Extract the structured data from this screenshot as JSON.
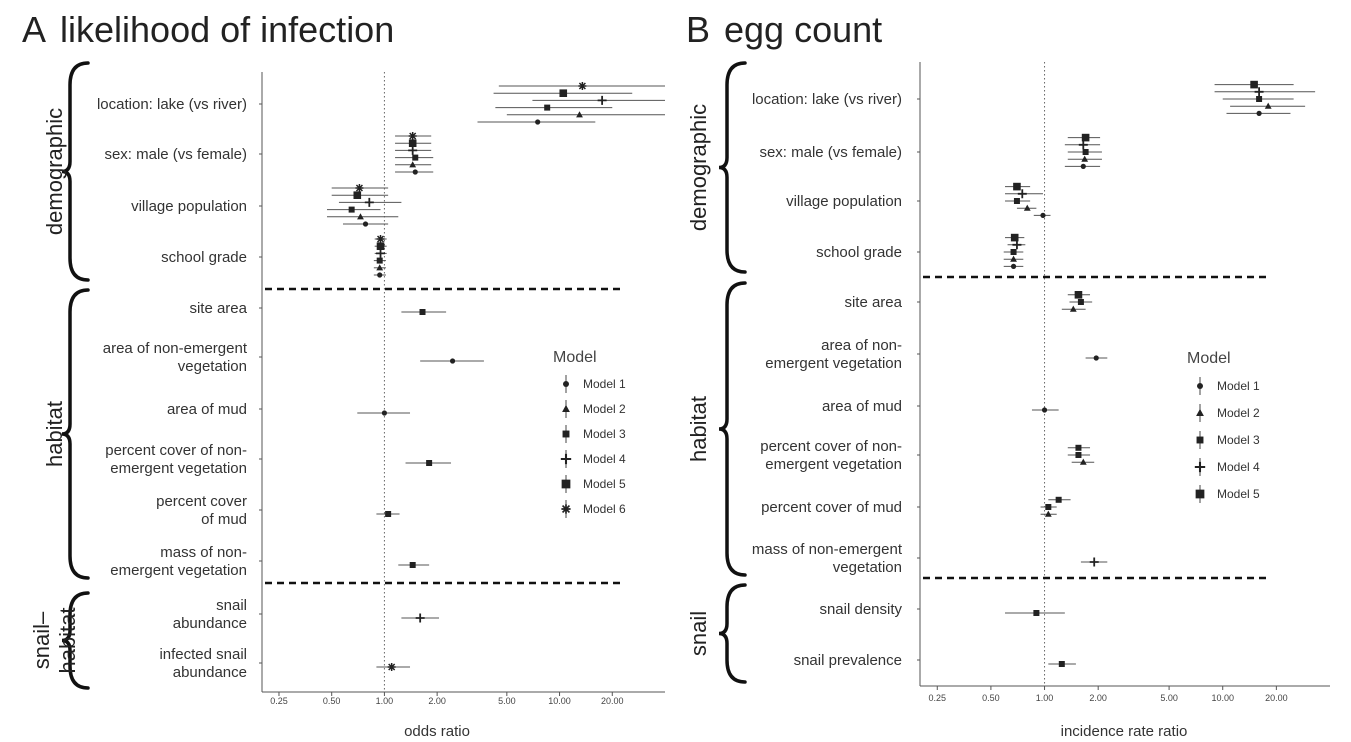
{
  "chart_data": [
    {
      "type": "forest",
      "panel_letter": "A",
      "title": "likelihood of infection",
      "xlabel": "odds ratio",
      "x_scale": "log",
      "xlim": [
        0.2,
        40
      ],
      "x_ticks": [
        0.25,
        0.5,
        1,
        2,
        5,
        10,
        20
      ],
      "x_tick_labels": [
        "0.25",
        "0.50",
        "1.00",
        "2.00",
        "5.00",
        "10.00",
        "20.00"
      ],
      "reference_line": 1,
      "legend": {
        "title": "Model",
        "placement": "right",
        "entries": [
          {
            "label": "Model 1",
            "marker": "circle"
          },
          {
            "label": "Model 2",
            "marker": "triangle"
          },
          {
            "label": "Model 3",
            "marker": "square"
          },
          {
            "label": "Model 4",
            "marker": "plus"
          },
          {
            "label": "Model 5",
            "marker": "bigsquare"
          },
          {
            "label": "Model 6",
            "marker": "star"
          }
        ]
      },
      "groups": [
        {
          "name": "demographic",
          "rows": [
            {
              "label": [
                "location: lake (vs river)"
              ],
              "estimates": [
                {
                  "model": 6,
                  "est": 13.5,
                  "lo": 4.5,
                  "hi": 40
                },
                {
                  "model": 5,
                  "est": 10.5,
                  "lo": 4.2,
                  "hi": 26
                },
                {
                  "model": 4,
                  "est": 17.5,
                  "lo": 7,
                  "hi": 40
                },
                {
                  "model": 3,
                  "est": 8.5,
                  "lo": 4.3,
                  "hi": 20
                },
                {
                  "model": 2,
                  "est": 13,
                  "lo": 5,
                  "hi": 40
                },
                {
                  "model": 1,
                  "est": 7.5,
                  "lo": 3.4,
                  "hi": 16
                }
              ]
            },
            {
              "label": [
                "sex: male (vs female)"
              ],
              "estimates": [
                {
                  "model": 6,
                  "est": 1.45,
                  "lo": 1.15,
                  "hi": 1.85
                },
                {
                  "model": 5,
                  "est": 1.45,
                  "lo": 1.15,
                  "hi": 1.85
                },
                {
                  "model": 4,
                  "est": 1.45,
                  "lo": 1.15,
                  "hi": 1.85
                },
                {
                  "model": 3,
                  "est": 1.5,
                  "lo": 1.15,
                  "hi": 1.9
                },
                {
                  "model": 2,
                  "est": 1.45,
                  "lo": 1.15,
                  "hi": 1.85
                },
                {
                  "model": 1,
                  "est": 1.5,
                  "lo": 1.15,
                  "hi": 1.9
                }
              ]
            },
            {
              "label": [
                "village population"
              ],
              "estimates": [
                {
                  "model": 6,
                  "est": 0.72,
                  "lo": 0.5,
                  "hi": 1.05
                },
                {
                  "model": 5,
                  "est": 0.7,
                  "lo": 0.5,
                  "hi": 1.05
                },
                {
                  "model": 4,
                  "est": 0.82,
                  "lo": 0.55,
                  "hi": 1.25
                },
                {
                  "model": 3,
                  "est": 0.65,
                  "lo": 0.47,
                  "hi": 0.95
                },
                {
                  "model": 2,
                  "est": 0.73,
                  "lo": 0.47,
                  "hi": 1.2
                },
                {
                  "model": 1,
                  "est": 0.78,
                  "lo": 0.58,
                  "hi": 1.05
                }
              ]
            },
            {
              "label": [
                "school grade"
              ],
              "estimates": [
                {
                  "model": 6,
                  "est": 0.95,
                  "lo": 0.88,
                  "hi": 1.03
                },
                {
                  "model": 5,
                  "est": 0.95,
                  "lo": 0.88,
                  "hi": 1.03
                },
                {
                  "model": 4,
                  "est": 0.95,
                  "lo": 0.88,
                  "hi": 1.03
                },
                {
                  "model": 3,
                  "est": 0.94,
                  "lo": 0.87,
                  "hi": 1.02
                },
                {
                  "model": 2,
                  "est": 0.94,
                  "lo": 0.87,
                  "hi": 1.02
                },
                {
                  "model": 1,
                  "est": 0.94,
                  "lo": 0.87,
                  "hi": 1.02
                }
              ]
            }
          ]
        },
        {
          "name": "habitat",
          "rows": [
            {
              "label": [
                "site area"
              ],
              "estimates": [
                {
                  "model": 3,
                  "est": 1.65,
                  "lo": 1.25,
                  "hi": 2.25
                }
              ]
            },
            {
              "label": [
                "area of non-emergent",
                "vegetation"
              ],
              "estimates": [
                {
                  "model": 1,
                  "est": 2.45,
                  "lo": 1.6,
                  "hi": 3.7
                }
              ]
            },
            {
              "label": [
                "area of mud"
              ],
              "estimates": [
                {
                  "model": 1,
                  "est": 1.0,
                  "lo": 0.7,
                  "hi": 1.4
                }
              ]
            },
            {
              "label": [
                "percent cover of non-",
                "emergent vegetation"
              ],
              "estimates": [
                {
                  "model": 3,
                  "est": 1.8,
                  "lo": 1.32,
                  "hi": 2.4
                }
              ]
            },
            {
              "label": [
                "percent cover",
                "of mud"
              ],
              "estimates": [
                {
                  "model": 3,
                  "est": 1.05,
                  "lo": 0.9,
                  "hi": 1.22
                }
              ]
            },
            {
              "label": [
                "mass of non-",
                "emergent vegetation"
              ],
              "estimates": [
                {
                  "model": 3,
                  "est": 1.45,
                  "lo": 1.2,
                  "hi": 1.8
                }
              ]
            }
          ]
        },
        {
          "name": "snail–\nhabitat",
          "rows": [
            {
              "label": [
                "snail",
                "abundance"
              ],
              "estimates": [
                {
                  "model": 4,
                  "est": 1.6,
                  "lo": 1.25,
                  "hi": 2.05
                }
              ]
            },
            {
              "label": [
                "infected snail",
                "abundance"
              ],
              "estimates": [
                {
                  "model": 6,
                  "est": 1.1,
                  "lo": 0.9,
                  "hi": 1.4
                }
              ]
            }
          ]
        }
      ]
    },
    {
      "type": "forest",
      "panel_letter": "B",
      "title": "egg count",
      "xlabel": "incidence rate ratio",
      "x_scale": "log",
      "xlim": [
        0.2,
        40
      ],
      "x_ticks": [
        0.25,
        0.5,
        1,
        2,
        5,
        10,
        20
      ],
      "x_tick_labels": [
        "0.25",
        "0.50",
        "1.00",
        "2.00",
        "5.00",
        "10.00",
        "20.00"
      ],
      "reference_line": 1,
      "legend": {
        "title": "Model",
        "placement": "right",
        "entries": [
          {
            "label": "Model 1",
            "marker": "circle"
          },
          {
            "label": "Model 2",
            "marker": "triangle"
          },
          {
            "label": "Model 3",
            "marker": "square"
          },
          {
            "label": "Model 4",
            "marker": "plus"
          },
          {
            "label": "Model 5",
            "marker": "bigsquare"
          }
        ]
      },
      "groups": [
        {
          "name": "demographic",
          "rows": [
            {
              "label": [
                "location: lake (vs river)"
              ],
              "estimates": [
                {
                  "model": 5,
                  "est": 15,
                  "lo": 9,
                  "hi": 25
                },
                {
                  "model": 4,
                  "est": 16,
                  "lo": 9,
                  "hi": 33
                },
                {
                  "model": 3,
                  "est": 16,
                  "lo": 10,
                  "hi": 25
                },
                {
                  "model": 2,
                  "est": 18,
                  "lo": 11,
                  "hi": 29
                },
                {
                  "model": 1,
                  "est": 16,
                  "lo": 10.5,
                  "hi": 24
                }
              ]
            },
            {
              "label": [
                "sex: male  (vs female)"
              ],
              "estimates": [
                {
                  "model": 5,
                  "est": 1.7,
                  "lo": 1.35,
                  "hi": 2.05
                },
                {
                  "model": 4,
                  "est": 1.65,
                  "lo": 1.3,
                  "hi": 2.05
                },
                {
                  "model": 3,
                  "est": 1.7,
                  "lo": 1.35,
                  "hi": 2.1
                },
                {
                  "model": 2,
                  "est": 1.68,
                  "lo": 1.35,
                  "hi": 2.1
                },
                {
                  "model": 1,
                  "est": 1.65,
                  "lo": 1.3,
                  "hi": 2.05
                }
              ]
            },
            {
              "label": [
                "village population"
              ],
              "estimates": [
                {
                  "model": 5,
                  "est": 0.7,
                  "lo": 0.6,
                  "hi": 0.83
                },
                {
                  "model": 4,
                  "est": 0.75,
                  "lo": 0.6,
                  "hi": 0.98
                },
                {
                  "model": 3,
                  "est": 0.7,
                  "lo": 0.6,
                  "hi": 0.83
                },
                {
                  "model": 2,
                  "est": 0.8,
                  "lo": 0.7,
                  "hi": 0.9
                },
                {
                  "model": 1,
                  "est": 0.98,
                  "lo": 0.87,
                  "hi": 1.08
                }
              ]
            },
            {
              "label": [
                "school grade"
              ],
              "estimates": [
                {
                  "model": 5,
                  "est": 0.68,
                  "lo": 0.6,
                  "hi": 0.77
                },
                {
                  "model": 4,
                  "est": 0.7,
                  "lo": 0.62,
                  "hi": 0.78
                },
                {
                  "model": 3,
                  "est": 0.67,
                  "lo": 0.59,
                  "hi": 0.76
                },
                {
                  "model": 2,
                  "est": 0.67,
                  "lo": 0.59,
                  "hi": 0.76
                },
                {
                  "model": 1,
                  "est": 0.67,
                  "lo": 0.59,
                  "hi": 0.76
                }
              ]
            }
          ]
        },
        {
          "name": "habitat",
          "rows": [
            {
              "label": [
                "site area"
              ],
              "estimates": [
                {
                  "model": 5,
                  "est": 1.55,
                  "lo": 1.35,
                  "hi": 1.8
                },
                {
                  "model": 3,
                  "est": 1.6,
                  "lo": 1.38,
                  "hi": 1.85
                },
                {
                  "model": 2,
                  "est": 1.45,
                  "lo": 1.25,
                  "hi": 1.7
                }
              ]
            },
            {
              "label": [
                "area of non-",
                "emergent vegetation"
              ],
              "estimates": [
                {
                  "model": 1,
                  "est": 1.95,
                  "lo": 1.7,
                  "hi": 2.25
                }
              ]
            },
            {
              "label": [
                "area of mud"
              ],
              "estimates": [
                {
                  "model": 1,
                  "est": 1.0,
                  "lo": 0.85,
                  "hi": 1.2
                }
              ]
            },
            {
              "label": [
                "percent cover of non-",
                "emergent vegetation"
              ],
              "estimates": [
                {
                  "model": 3,
                  "est": 1.55,
                  "lo": 1.35,
                  "hi": 1.8
                },
                {
                  "model": 3,
                  "est": 1.55,
                  "lo": 1.35,
                  "hi": 1.8
                },
                {
                  "model": 2,
                  "est": 1.65,
                  "lo": 1.42,
                  "hi": 1.9
                }
              ]
            },
            {
              "label": [
                "percent cover of mud"
              ],
              "estimates": [
                {
                  "model": 3,
                  "est": 1.2,
                  "lo": 1.05,
                  "hi": 1.4
                },
                {
                  "model": 3,
                  "est": 1.05,
                  "lo": 0.95,
                  "hi": 1.17
                },
                {
                  "model": 2,
                  "est": 1.05,
                  "lo": 0.95,
                  "hi": 1.17
                }
              ]
            },
            {
              "label": [
                "mass of non-emergent",
                "vegetation"
              ],
              "estimates": [
                {
                  "model": 4,
                  "est": 1.9,
                  "lo": 1.6,
                  "hi": 2.25
                }
              ]
            }
          ]
        },
        {
          "name": "snail",
          "rows": [
            {
              "label": [
                "snail density"
              ],
              "estimates": [
                {
                  "model": 3,
                  "est": 0.9,
                  "lo": 0.6,
                  "hi": 1.3
                }
              ]
            },
            {
              "label": [
                "snail prevalence"
              ],
              "estimates": [
                {
                  "model": 3,
                  "est": 1.25,
                  "lo": 1.05,
                  "hi": 1.5
                }
              ]
            }
          ]
        }
      ]
    }
  ]
}
